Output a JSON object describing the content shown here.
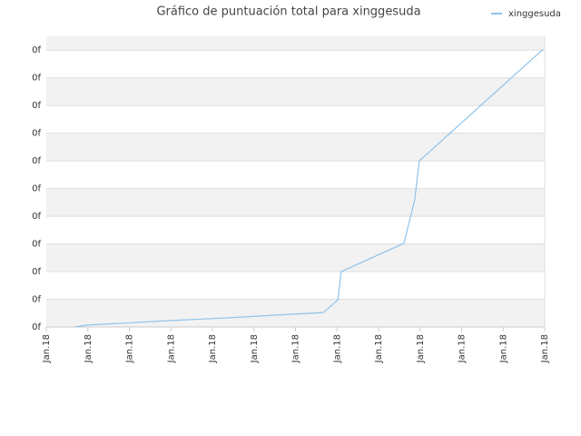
{
  "chart_data": {
    "type": "line",
    "title": "Gráfico de puntuación total para xinggesuda",
    "x": [
      0.7,
      0.98,
      1.73,
      2.95,
      4.35,
      5.88,
      6.67,
      7.02,
      7.1,
      8.61,
      8.87,
      8.98,
      11.96
    ],
    "series": [
      {
        "name": "xinggesuda",
        "color": "#90c3ea",
        "values": [
          0,
          0.07,
          0.13,
          0.23,
          0.33,
          0.46,
          0.52,
          0.98,
          2.0,
          3.02,
          4.59,
          6.0,
          10.03
        ]
      }
    ],
    "xlim": [
      0,
      12
    ],
    "xticks": [
      {
        "value": 0,
        "label": "Jan.18"
      },
      {
        "value": 1,
        "label": "Jan.18"
      },
      {
        "value": 2,
        "label": "Jan.18"
      },
      {
        "value": 3,
        "label": "Jan.18"
      },
      {
        "value": 4,
        "label": "Jan.18"
      },
      {
        "value": 5,
        "label": "Jan.18"
      },
      {
        "value": 6,
        "label": "Jan.18"
      },
      {
        "value": 7,
        "label": "Jan.18"
      },
      {
        "value": 8,
        "label": "Jan.18"
      },
      {
        "value": 9,
        "label": "Jan.18"
      },
      {
        "value": 10,
        "label": "Jan.18"
      },
      {
        "value": 11,
        "label": "Jan.18"
      },
      {
        "value": 12,
        "label": "Jan.18"
      }
    ],
    "ylim": [
      0,
      10.5
    ],
    "yticks": [
      {
        "value": 0,
        "label": "0f"
      },
      {
        "value": 1,
        "label": "0f"
      },
      {
        "value": 2,
        "label": "0f"
      },
      {
        "value": 3,
        "label": "0f"
      },
      {
        "value": 4,
        "label": "0f"
      },
      {
        "value": 5,
        "label": "0f"
      },
      {
        "value": 6,
        "label": "0f"
      },
      {
        "value": 7,
        "label": "0f"
      },
      {
        "value": 8,
        "label": "0f"
      },
      {
        "value": 9,
        "label": "0f"
      },
      {
        "value": 10,
        "label": "0f"
      }
    ],
    "grid": true,
    "legend": "top-right"
  }
}
